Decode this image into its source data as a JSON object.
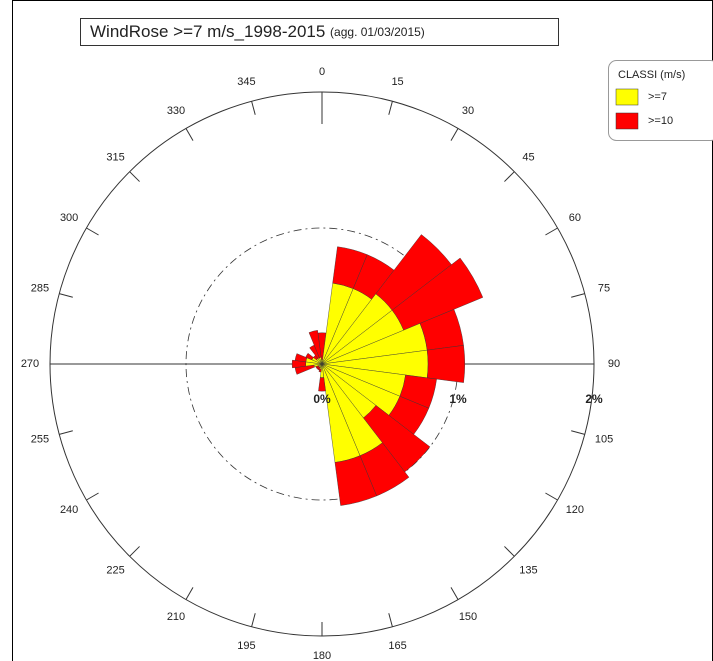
{
  "chart_data": {
    "type": "windrose",
    "title": "WindRose >=7 m/s_1998-2015",
    "subtitle": "(agg. 01/03/2015)",
    "legend_title": "CLASSI (m/s)",
    "categories": [
      "0",
      "15",
      "30",
      "45",
      "60",
      "75",
      "90",
      "105",
      "120",
      "135",
      "150",
      "165",
      "180",
      "195",
      "210",
      "225",
      "240",
      "255",
      "270",
      "285",
      "300",
      "315",
      "330",
      "345"
    ],
    "series": [
      {
        "name": ">=7",
        "color": "#ffff00",
        "values": [
          0.03,
          0.6,
          0.6,
          0.65,
          0.65,
          0.78,
          0.78,
          0.62,
          0.62,
          0.5,
          0.73,
          0.73,
          0.1,
          0.04,
          0.03,
          0.03,
          0.03,
          0.06,
          0.12,
          0.12,
          0.08,
          0.05,
          0.05,
          0.05
        ]
      },
      {
        "name": ">=10",
        "color": "#ff0000",
        "values": [
          0.2,
          0.27,
          0.27,
          0.55,
          0.63,
          0.27,
          0.27,
          0.23,
          0.23,
          0.5,
          0.32,
          0.32,
          0.1,
          0.02,
          0.02,
          0.02,
          0.02,
          0.14,
          0.1,
          0.08,
          0.05,
          0.03,
          0.1,
          0.2
        ]
      }
    ],
    "rlim": [
      0,
      2
    ],
    "rticks": [
      {
        "value": 0,
        "label": "0%"
      },
      {
        "value": 1,
        "label": "1%"
      },
      {
        "value": 2,
        "label": "2%"
      }
    ],
    "legend": "top-right"
  }
}
